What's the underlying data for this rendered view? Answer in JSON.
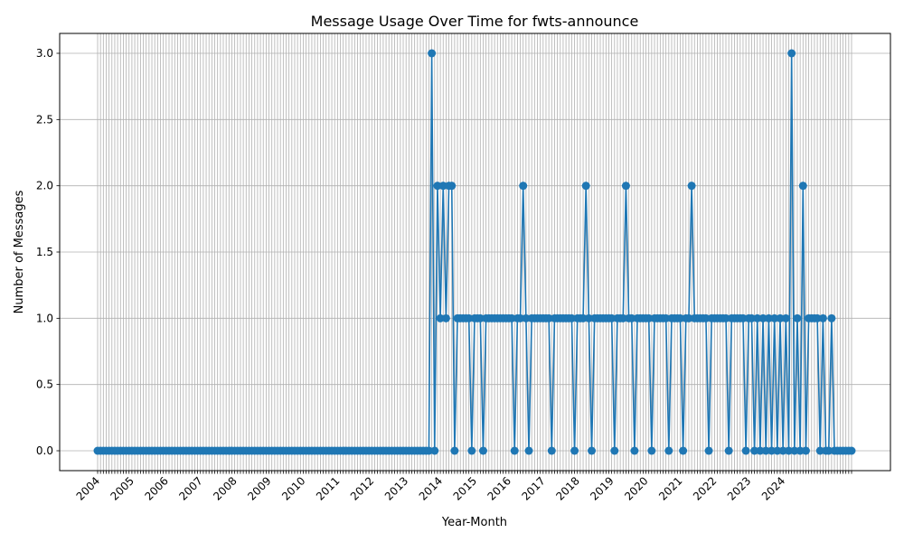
{
  "chart_data": {
    "type": "line",
    "title": "Message Usage Over Time for fwts-announce",
    "xlabel": "Year-Month",
    "ylabel": "Number of Messages",
    "ylim": [
      -0.15,
      3.15
    ],
    "yticks": [
      "0.0",
      "0.5",
      "1.0",
      "1.5",
      "2.0",
      "2.5",
      "3.0"
    ],
    "xtick_labels": [
      "2004",
      "2005",
      "2006",
      "2007",
      "2008",
      "2009",
      "2010",
      "2011",
      "2012",
      "2013",
      "2014",
      "2015",
      "2016",
      "2017",
      "2018",
      "2019",
      "2020",
      "2021",
      "2022",
      "2023",
      "2024"
    ],
    "grid": true,
    "color": "#1f77b4",
    "x_start": "2004-01",
    "series": [
      {
        "values": [
          0,
          0,
          0,
          0,
          0,
          0,
          0,
          0,
          0,
          0,
          0,
          0,
          0,
          0,
          0,
          0,
          0,
          0,
          0,
          0,
          0,
          0,
          0,
          0,
          0,
          0,
          0,
          0,
          0,
          0,
          0,
          0,
          0,
          0,
          0,
          0,
          0,
          0,
          0,
          0,
          0,
          0,
          0,
          0,
          0,
          0,
          0,
          0,
          0,
          0,
          0,
          0,
          0,
          0,
          0,
          0,
          0,
          0,
          0,
          0,
          0,
          0,
          0,
          0,
          0,
          0,
          0,
          0,
          0,
          0,
          0,
          0,
          0,
          0,
          0,
          0,
          0,
          0,
          0,
          0,
          0,
          0,
          0,
          0,
          0,
          0,
          0,
          0,
          0,
          0,
          0,
          0,
          0,
          0,
          0,
          0,
          0,
          0,
          0,
          0,
          0,
          0,
          0,
          0,
          0,
          0,
          0,
          0,
          0,
          0,
          0,
          0,
          0,
          0,
          0,
          0,
          0,
          3,
          0,
          2,
          1,
          2,
          1,
          2,
          2,
          0,
          1,
          1,
          1,
          1,
          1,
          0,
          1,
          1,
          1,
          0,
          1,
          1,
          1,
          1,
          1,
          1,
          1,
          1,
          1,
          1,
          0,
          1,
          1,
          2,
          1,
          0,
          1,
          1,
          1,
          1,
          1,
          1,
          1,
          0,
          1,
          1,
          1,
          1,
          1,
          1,
          1,
          0,
          1,
          1,
          1,
          2,
          1,
          0,
          1,
          1,
          1,
          1,
          1,
          1,
          1,
          0,
          1,
          1,
          1,
          2,
          1,
          1,
          0,
          1,
          1,
          1,
          1,
          1,
          0,
          1,
          1,
          1,
          1,
          1,
          0,
          1,
          1,
          1,
          1,
          0,
          1,
          1,
          2,
          1,
          1,
          1,
          1,
          1,
          0,
          1,
          1,
          1,
          1,
          1,
          1,
          0,
          1,
          1,
          1,
          1,
          1,
          0,
          1,
          1,
          0,
          1,
          0,
          1,
          0,
          1,
          0,
          1,
          0,
          1,
          0,
          1,
          0,
          3,
          0,
          1,
          0,
          2,
          0,
          1,
          1,
          1,
          1,
          0,
          1,
          0,
          0,
          1,
          0,
          0,
          0,
          0,
          0,
          0,
          0
        ]
      }
    ]
  }
}
